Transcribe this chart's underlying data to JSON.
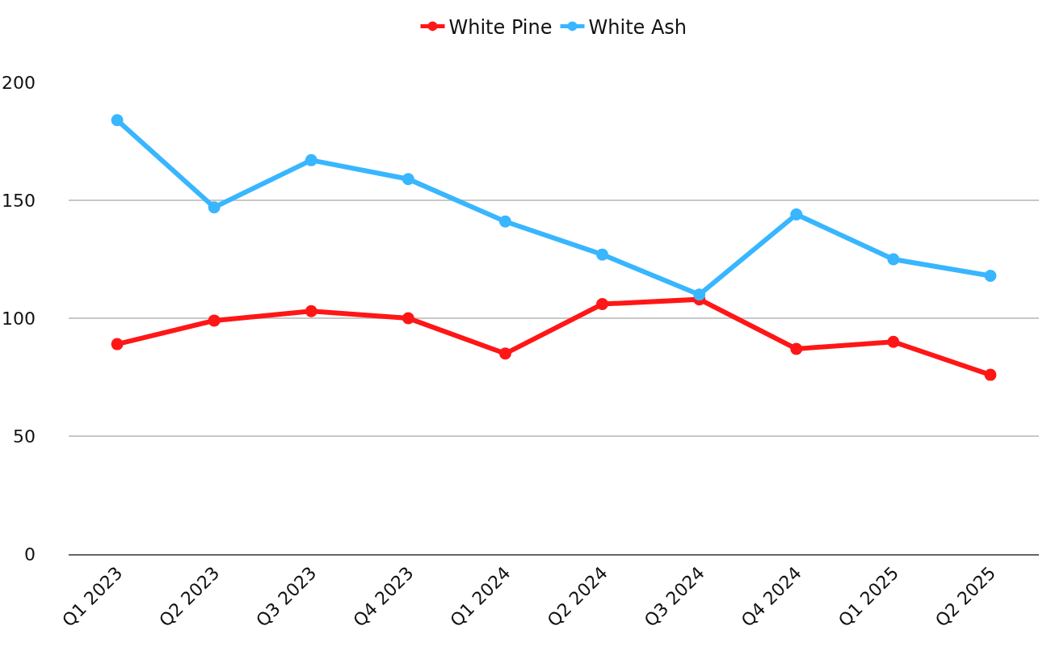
{
  "chart_data": {
    "type": "line",
    "categories": [
      "Q1 2023",
      "Q2 2023",
      "Q3 2023",
      "Q4 2023",
      "Q1 2024",
      "Q2 2024",
      "Q3 2024",
      "Q4 2024",
      "Q1 2025",
      "Q2 2025"
    ],
    "series": [
      {
        "name": "White Ash",
        "color": "#38b6ff",
        "values": [
          184,
          147,
          167,
          159,
          141,
          127,
          110,
          144,
          125,
          118
        ]
      },
      {
        "name": "White Pine",
        "color": "#ff1616",
        "values": [
          89,
          99,
          103,
          100,
          85,
          106,
          108,
          87,
          90,
          76
        ]
      }
    ],
    "ylim": [
      0,
      200
    ],
    "yticks": [
      0,
      50,
      100,
      150,
      200
    ],
    "grid": "y",
    "legend": "top",
    "marker": "circle",
    "line_style": "solid"
  }
}
